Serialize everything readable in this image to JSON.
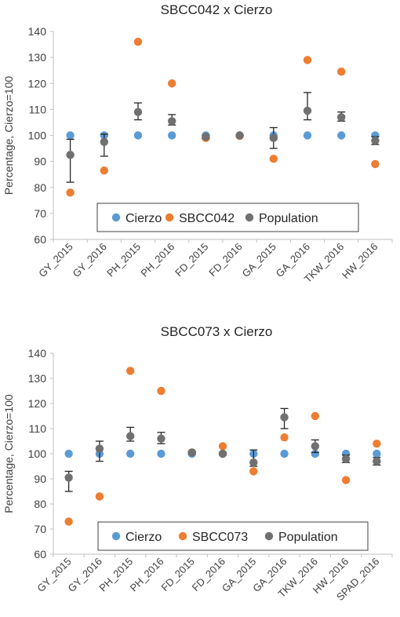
{
  "chart_data": [
    {
      "type": "scatter",
      "title": "SBCC042 x Cierzo",
      "ylabel": "Percentage, Cierzo=100",
      "xlabel": "",
      "ylim": [
        60,
        140
      ],
      "ystep": 10,
      "categories": [
        "GY_2015",
        "GY_2016",
        "PH_2015",
        "PH_2016",
        "FD_2015",
        "FD_2016",
        "GA_2015",
        "GA_2016",
        "TKW_2016",
        "HW_2016"
      ],
      "grid": false,
      "legend_position": "inside-bottom",
      "series": [
        {
          "name": "Cierzo",
          "color": "#5B9BD5",
          "values": [
            100,
            100,
            100,
            100,
            100,
            100,
            100,
            100,
            100,
            100
          ]
        },
        {
          "name": "SBCC042",
          "color": "#ED7D31",
          "values": [
            78,
            86.5,
            136,
            120,
            99,
            99.8,
            91,
            129,
            124.5,
            89
          ]
        },
        {
          "name": "Population",
          "color": "#707070",
          "values": [
            92.5,
            97.5,
            109,
            105.5,
            99.5,
            100,
            99,
            109.5,
            107,
            98
          ],
          "err_low": [
            82,
            92,
            106,
            104,
            98.8,
            99.6,
            95,
            106,
            105.5,
            96.5
          ],
          "err_high": [
            98.5,
            100.5,
            112.5,
            108,
            100,
            100.2,
            103,
            116.5,
            109,
            99.5
          ]
        }
      ]
    },
    {
      "type": "scatter",
      "title": "SBCC073 x Cierzo",
      "ylabel": "Percentage, Cierzo=100",
      "xlabel": "",
      "ylim": [
        60,
        140
      ],
      "ystep": 10,
      "categories": [
        "GY_2015",
        "GY_2016",
        "PH_2015",
        "PH_2016",
        "FD_2015",
        "FD_2016",
        "GA_2015",
        "GA_2016",
        "TKW_2016",
        "HW_2016",
        "SPAD_2016"
      ],
      "grid": false,
      "legend_position": "inside-bottom",
      "series": [
        {
          "name": "Cierzo",
          "color": "#5B9BD5",
          "values": [
            100,
            100,
            100,
            100,
            100,
            100,
            100,
            100,
            100,
            100,
            100
          ]
        },
        {
          "name": "SBCC073",
          "color": "#ED7D31",
          "values": [
            73,
            83,
            133,
            125,
            100.5,
            103,
            93,
            106.5,
            115,
            89.5,
            104
          ]
        },
        {
          "name": "Population",
          "color": "#707070",
          "values": [
            90.5,
            102,
            107,
            106,
            100.5,
            100,
            96.5,
            114.5,
            103,
            98,
            97
          ],
          "err_low": [
            85,
            97,
            105,
            104,
            100,
            99.5,
            95,
            110,
            100.5,
            96.5,
            95.5
          ],
          "err_high": [
            93,
            105,
            110.5,
            108.5,
            101,
            100.5,
            101.5,
            118,
            105.5,
            99.5,
            98.5
          ]
        }
      ]
    }
  ]
}
